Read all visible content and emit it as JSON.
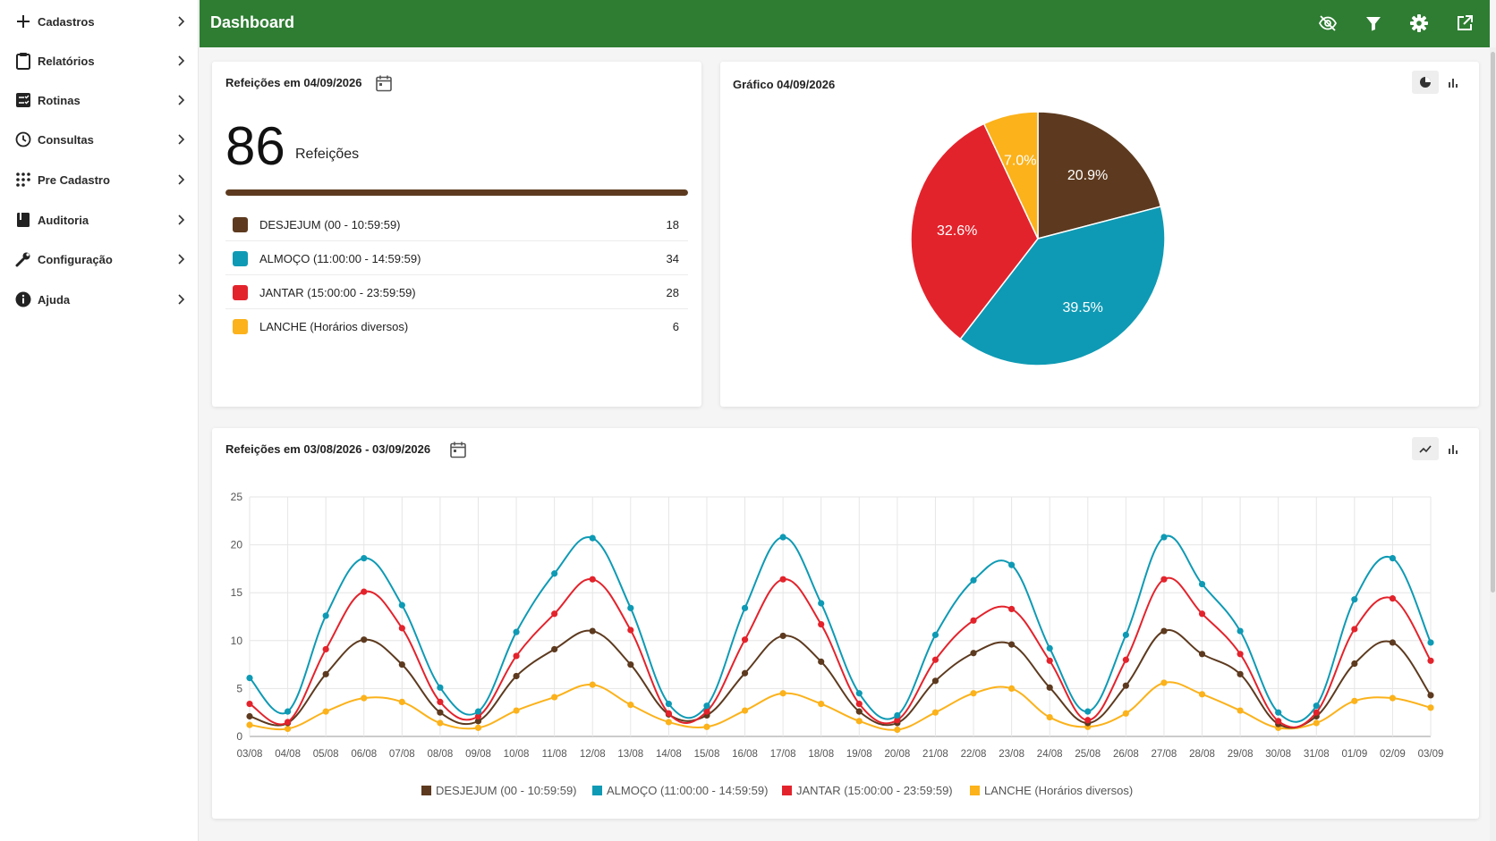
{
  "sidebar": {
    "items": [
      {
        "label": "Cadastros",
        "icon": "plus-icon"
      },
      {
        "label": "Relatórios",
        "icon": "clipboard-icon"
      },
      {
        "label": "Rotinas",
        "icon": "checklist-icon"
      },
      {
        "label": "Consultas",
        "icon": "clock-icon"
      },
      {
        "label": "Pre Cadastro",
        "icon": "dialpad-icon"
      },
      {
        "label": "Auditoria",
        "icon": "book-icon"
      },
      {
        "label": "Configuração",
        "icon": "wrench-icon"
      },
      {
        "label": "Ajuda",
        "icon": "info-icon"
      }
    ]
  },
  "header": {
    "title": "Dashboard",
    "actions": [
      "visibility-off-icon",
      "filter-icon",
      "gear-icon",
      "open-external-icon"
    ],
    "color": "#2e7d32"
  },
  "summary": {
    "title": "Refeições em 04/09/2026",
    "total": "86",
    "total_label": "Refeições",
    "progress": 1.0,
    "items": [
      {
        "name": "DESJEJUM (00 - 10:59:59)",
        "value": "18",
        "color": "#5d3a1f"
      },
      {
        "name": "ALMOÇO (11:00:00 - 14:59:59)",
        "value": "34",
        "color": "#0e9ab4"
      },
      {
        "name": "JANTAR (15:00:00 - 23:59:59)",
        "value": "28",
        "color": "#e3232c"
      },
      {
        "name": "LANCHE (Horários diversos)",
        "value": "6",
        "color": "#fbb21b"
      }
    ]
  },
  "pie": {
    "title": "Gráfico 04/09/2026"
  },
  "trend": {
    "title": "Refeições em 03/08/2026 - 03/09/2026"
  },
  "chart_data": [
    {
      "type": "pie",
      "title": "Gráfico 04/09/2026",
      "slices": [
        {
          "name": "DESJEJUM (00 - 10:59:59)",
          "value": 18,
          "label": "20.9%",
          "color": "#5d3a1f"
        },
        {
          "name": "ALMOÇO (11:00:00 - 14:59:59)",
          "value": 34,
          "label": "39.5%",
          "color": "#0e9ab4"
        },
        {
          "name": "JANTAR (15:00:00 - 23:59:59)",
          "value": 28,
          "label": "32.6%",
          "color": "#e3232c"
        },
        {
          "name": "LANCHE (Horários diversos)",
          "value": 6,
          "label": "7.0%",
          "color": "#fbb21b"
        }
      ]
    },
    {
      "type": "line",
      "title": "Refeições em 03/08/2026 - 03/09/2026",
      "categories": [
        "03/08",
        "04/08",
        "05/08",
        "06/08",
        "07/08",
        "08/08",
        "09/08",
        "10/08",
        "11/08",
        "12/08",
        "13/08",
        "14/08",
        "15/08",
        "16/08",
        "17/08",
        "18/08",
        "19/08",
        "20/08",
        "21/08",
        "22/08",
        "23/08",
        "24/08",
        "25/08",
        "26/08",
        "27/08",
        "28/08",
        "29/08",
        "30/08",
        "31/08",
        "01/09",
        "02/09",
        "03/09"
      ],
      "yticks": [
        0,
        5,
        10,
        15,
        20,
        25
      ],
      "ylim": [
        0,
        25
      ],
      "grid": true,
      "legend_position": "bottom",
      "series": [
        {
          "name": "DESJEJUM (00 - 10:59:59)",
          "color": "#5d3a1f",
          "values": [
            2.1,
            1.4,
            6.5,
            10.1,
            7.5,
            2.5,
            1.6,
            6.3,
            9.1,
            11,
            7.5,
            2.3,
            2.2,
            6.6,
            10.5,
            7.8,
            2.6,
            1.4,
            5.8,
            8.7,
            9.6,
            5.1,
            1.4,
            5.3,
            11,
            8.6,
            6.5,
            1.3,
            2.1,
            7.6,
            9.8,
            4.3
          ]
        },
        {
          "name": "ALMOÇO (11:00:00 - 14:59:59)",
          "color": "#0e9ab4",
          "values": [
            6.1,
            2.6,
            12.6,
            18.6,
            13.7,
            5.1,
            2.6,
            10.9,
            17,
            20.7,
            13.4,
            3.4,
            3.2,
            13.4,
            20.8,
            13.9,
            4.5,
            2.2,
            10.6,
            16.3,
            17.9,
            9.2,
            2.6,
            10.6,
            20.8,
            15.9,
            11,
            2.5,
            3.2,
            14.3,
            18.6,
            9.8
          ]
        },
        {
          "name": "JANTAR (15:00:00 - 23:59:59)",
          "color": "#e3232c",
          "values": [
            3.4,
            1.5,
            9.1,
            15.1,
            11.3,
            3.6,
            2.1,
            8.4,
            12.8,
            16.4,
            11.1,
            2.4,
            2.6,
            10.1,
            16.4,
            11.7,
            3.4,
            1.7,
            8,
            12.1,
            13.3,
            7.9,
            1.7,
            8,
            16.4,
            12.8,
            8.6,
            1.6,
            2.5,
            11.2,
            14.4,
            7.9
          ]
        },
        {
          "name": "LANCHE (Horários diversos)",
          "color": "#fbb21b",
          "values": [
            1.2,
            0.8,
            2.6,
            4,
            3.6,
            1.4,
            0.9,
            2.7,
            4.1,
            5.4,
            3.3,
            1.5,
            1,
            2.7,
            4.5,
            3.4,
            1.6,
            0.7,
            2.5,
            4.5,
            5,
            2,
            1,
            2.4,
            5.6,
            4.4,
            2.7,
            0.9,
            1.4,
            3.7,
            4,
            3
          ]
        }
      ]
    }
  ]
}
